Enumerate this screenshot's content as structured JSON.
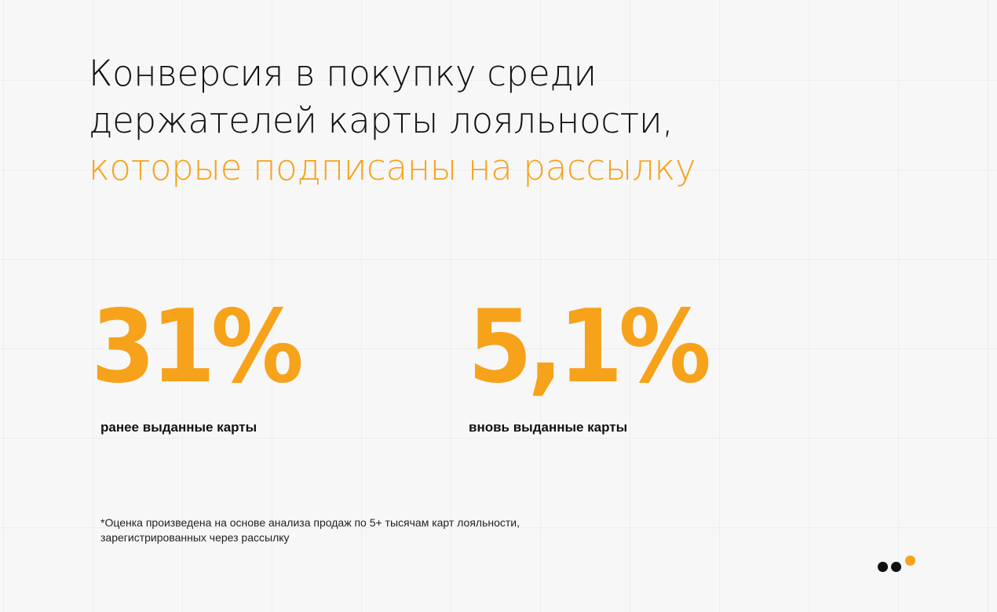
{
  "title": {
    "line1": "Конверсия в покупку среди",
    "line2": "держателей карты лояльности,",
    "line3_accent": "которые подписаны на рассылку"
  },
  "stats": [
    {
      "value": "31%",
      "label": "ранее выданные карты"
    },
    {
      "value": "5,1%",
      "label": "вновь выданные карты"
    }
  ],
  "footnote": {
    "line1": "*Оценка произведена на основе анализа продаж по 5+ тысячам карт лояльности,",
    "line2": "зарегистрированных через рассылку"
  },
  "colors": {
    "accent": "#f7a21b",
    "text": "#111111",
    "background": "#f7f7f7"
  },
  "logo": {
    "icon": "three-dots-logo-icon"
  }
}
